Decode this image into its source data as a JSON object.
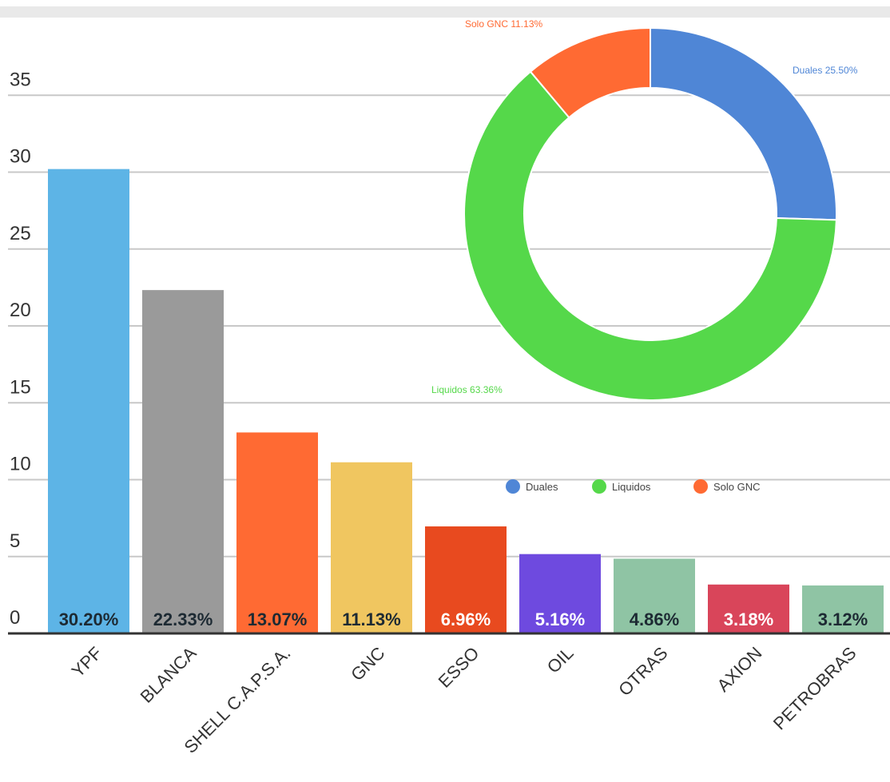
{
  "chart_data": [
    {
      "type": "bar",
      "categories": [
        "YPF",
        "BLANCA",
        "SHELL C.A.P.S.A.",
        "GNC",
        "ESSO",
        "OIL",
        "OTRAS",
        "AXION",
        "PETROBRAS"
      ],
      "values": [
        30.2,
        22.33,
        13.07,
        11.13,
        6.96,
        5.16,
        4.86,
        3.18,
        3.12
      ],
      "value_labels": [
        "30.20%",
        "22.33%",
        "13.07%",
        "11.13%",
        "6.96%",
        "5.16%",
        "4.86%",
        "3.18%",
        "3.12%"
      ],
      "colors": [
        "#5db4e6",
        "#9a9a9a",
        "#ff6a33",
        "#f0c660",
        "#e84a1f",
        "#6e4adf",
        "#8fc4a4",
        "#d9455a",
        "#8fc4a4"
      ],
      "label_colors": [
        "#1d2a33",
        "#1d2a33",
        "#1d2a33",
        "#1d2a33",
        "#ffffff",
        "#ffffff",
        "#1d2a33",
        "#ffffff",
        "#1d2a33"
      ],
      "y_ticks": [
        "0",
        "5",
        "10",
        "15",
        "20",
        "25",
        "30",
        "35"
      ],
      "ylim": [
        0,
        37
      ],
      "grid": true,
      "title": "",
      "xlabel": "",
      "ylabel": ""
    },
    {
      "type": "pie",
      "donut": true,
      "labels": [
        "Duales",
        "Liquidos",
        "Solo GNC"
      ],
      "values": [
        25.5,
        63.36,
        11.13
      ],
      "slice_labels": [
        "Duales 25.50%",
        "Liquidos 63.36%",
        "Solo GNC 11.13%"
      ],
      "colors": [
        "#4f86d6",
        "#55d84a",
        "#ff6a33"
      ],
      "legend": [
        "Duales",
        "Liquidos",
        "Solo GNC"
      ],
      "legend_position": "bottom"
    }
  ]
}
